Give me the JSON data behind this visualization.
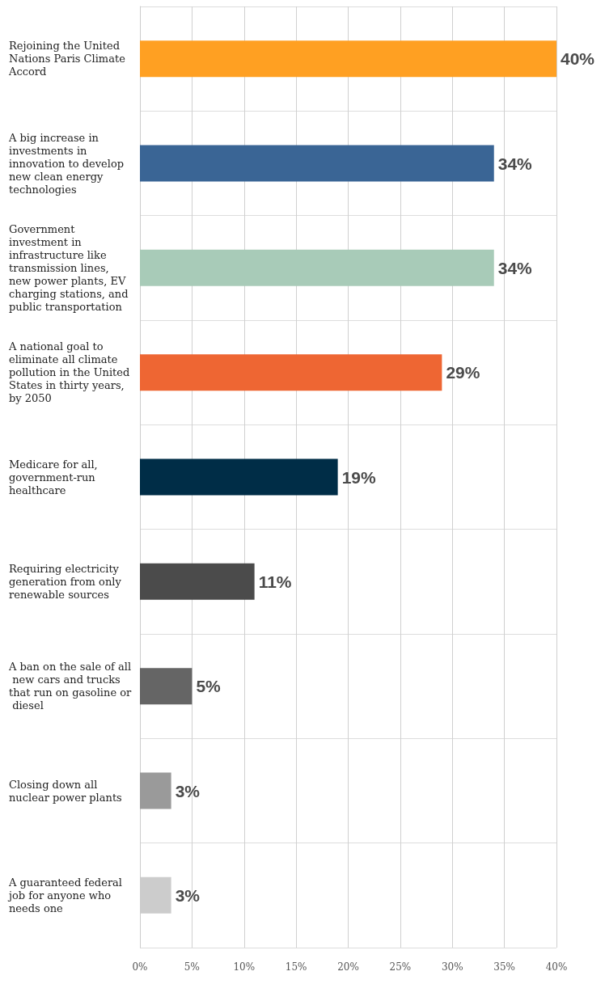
{
  "chart_data": {
    "type": "bar",
    "orientation": "horizontal",
    "categories": [
      "Rejoining the United Nations Paris Climate Accord",
      "A big increase in investments in innovation to develop new clean energy technologies",
      "Government investment in infrastructure like transmission lines, new power plants, EV charging stations, and public transportation",
      "A national goal to eliminate all climate pollution in the United States in thirty years, by 2050",
      "Medicare for all, government-run healthcare",
      "Requiring electricity generation from only renewable sources",
      "A ban on the sale of all new cars and trucks that run on gasoline or diesel",
      "Closing down all nuclear power plants",
      "A guaranteed federal job for anyone who needs one"
    ],
    "values": [
      40,
      34,
      34,
      29,
      19,
      11,
      5,
      3,
      3
    ],
    "colors": [
      "#ffa022",
      "#3a6595",
      "#a8cbb8",
      "#ee6633",
      "#002d47",
      "#4b4b4b",
      "#656565",
      "#9a9a9a",
      "#cccccc"
    ],
    "value_labels": [
      "40%",
      "34%",
      "34%",
      "29%",
      "19%",
      "11%",
      "5%",
      "3%",
      "3%"
    ],
    "xlim": [
      0,
      40
    ],
    "xticks": [
      {
        "value": 0,
        "label": "0%"
      },
      {
        "value": 5,
        "label": "5%"
      },
      {
        "value": 10,
        "label": "10%"
      },
      {
        "value": 15,
        "label": "15%"
      },
      {
        "value": 20,
        "label": "20%"
      },
      {
        "value": 25,
        "label": "25%"
      },
      {
        "value": 30,
        "label": "30%"
      },
      {
        "value": 35,
        "label": "35%"
      },
      {
        "value": 40,
        "label": "40%"
      }
    ],
    "grid": "x"
  }
}
